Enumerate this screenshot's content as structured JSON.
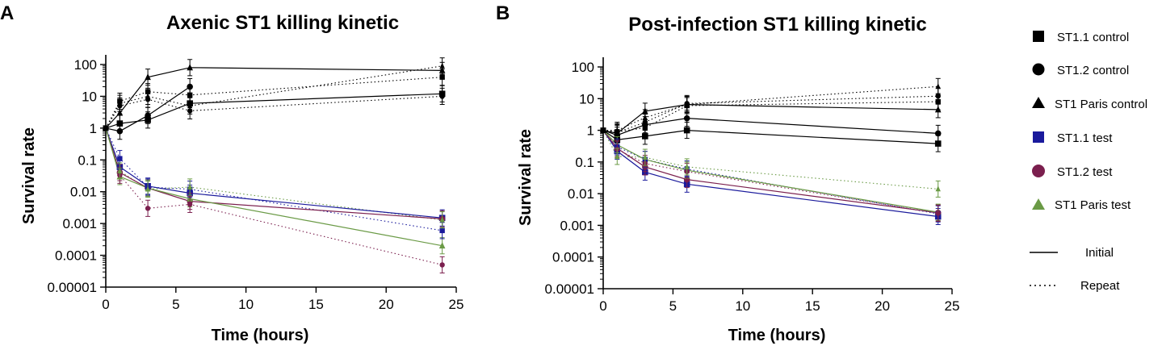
{
  "figure": {
    "panels": [
      "A",
      "B"
    ]
  },
  "legend": {
    "items": [
      {
        "label": "ST1.1 control",
        "marker": "square",
        "color": "#000000"
      },
      {
        "label": "ST1.2 control",
        "marker": "circle",
        "color": "#000000"
      },
      {
        "label": "ST1 Paris control",
        "marker": "triangle",
        "color": "#000000"
      },
      {
        "label": "ST1.1 test",
        "marker": "square",
        "color": "#1a1a9c"
      },
      {
        "label": "ST1.2 test",
        "marker": "circle",
        "color": "#7b1f4e"
      },
      {
        "label": "ST1 Paris test",
        "marker": "triangle",
        "color": "#6a9a45"
      }
    ],
    "line_styles": [
      {
        "label": "Initial",
        "style": "solid"
      },
      {
        "label": "Repeat",
        "style": "dotted"
      }
    ]
  },
  "chart_data": [
    {
      "panel": "A",
      "type": "line",
      "title": "Axenic ST1 killing kinetic",
      "xlabel": "Time (hours)",
      "ylabel": "Survival rate",
      "xlim": [
        0,
        25
      ],
      "xticks": [
        0,
        5,
        10,
        15,
        20,
        25
      ],
      "yscale": "log",
      "ylim": [
        1e-05,
        200
      ],
      "yticks": [
        1e-05,
        0.0001,
        0.001,
        0.01,
        0.1,
        1,
        10,
        100
      ],
      "ytick_labels": [
        "0.00001",
        "0.0001",
        "0.001",
        "0.01",
        "0.1",
        "1",
        "10",
        "100"
      ],
      "series": [
        {
          "name": "ST1.1 control",
          "run": "Initial",
          "x": [
            0,
            1,
            3,
            6,
            24
          ],
          "y": [
            1,
            1.4,
            1.8,
            6,
            12
          ]
        },
        {
          "name": "ST1.2 control",
          "run": "Initial",
          "x": [
            0,
            1,
            3,
            6,
            24
          ],
          "y": [
            1,
            0.8,
            2.5,
            20,
            null
          ]
        },
        {
          "name": "ST1 Paris control",
          "run": "Initial",
          "x": [
            0,
            1,
            3,
            6,
            24
          ],
          "y": [
            1,
            3,
            40,
            80,
            65
          ]
        },
        {
          "name": "ST1.1 control",
          "run": "Repeat",
          "x": [
            0,
            1,
            3,
            6,
            24
          ],
          "y": [
            1,
            7,
            14,
            11,
            40
          ]
        },
        {
          "name": "ST1.2 control",
          "run": "Repeat",
          "x": [
            0,
            1,
            3,
            6,
            24
          ],
          "y": [
            1,
            5,
            8,
            3.5,
            10
          ]
        },
        {
          "name": "ST1 Paris control",
          "run": "Repeat",
          "x": [
            0,
            1,
            3,
            6,
            24
          ],
          "y": [
            1,
            6,
            10,
            5,
            90
          ]
        },
        {
          "name": "ST1.1 test",
          "run": "Initial",
          "x": [
            0,
            1,
            3,
            6,
            24
          ],
          "y": [
            1,
            0.06,
            0.015,
            0.009,
            0.0015
          ]
        },
        {
          "name": "ST1.2 test",
          "run": "Initial",
          "x": [
            0,
            1,
            3,
            6,
            24
          ],
          "y": [
            1,
            0.04,
            0.013,
            0.005,
            0.0014
          ]
        },
        {
          "name": "ST1 Paris test",
          "run": "Initial",
          "x": [
            0,
            1,
            3,
            6,
            24
          ],
          "y": [
            1,
            0.03,
            0.013,
            0.006,
            0.0002
          ]
        },
        {
          "name": "ST1.1 test",
          "run": "Repeat",
          "x": [
            0,
            1,
            3,
            6,
            24
          ],
          "y": [
            1,
            0.11,
            0.014,
            0.012,
            0.0006
          ]
        },
        {
          "name": "ST1.2 test",
          "run": "Repeat",
          "x": [
            0,
            1,
            3,
            6,
            24
          ],
          "y": [
            1,
            0.033,
            0.003,
            0.004,
            5e-05
          ]
        },
        {
          "name": "ST1 Paris test",
          "run": "Repeat",
          "x": [
            0,
            1,
            3,
            6,
            24
          ],
          "y": [
            1,
            0.045,
            0.012,
            0.014,
            0.0013
          ]
        }
      ]
    },
    {
      "panel": "B",
      "type": "line",
      "title": "Post-infection ST1 killing kinetic",
      "xlabel": "Time (hours)",
      "ylabel": "Survival rate",
      "xlim": [
        0,
        25
      ],
      "xticks": [
        0,
        5,
        10,
        15,
        20,
        25
      ],
      "yscale": "log",
      "ylim": [
        1e-05,
        200
      ],
      "yticks": [
        1e-05,
        0.0001,
        0.001,
        0.01,
        0.1,
        1,
        10,
        100
      ],
      "ytick_labels": [
        "0.00001",
        "0.0001",
        "0.001",
        "0.01",
        "0.1",
        "1",
        "10",
        "100"
      ],
      "series": [
        {
          "name": "ST1.1 control",
          "run": "Initial",
          "x": [
            0,
            1,
            3,
            6,
            24
          ],
          "y": [
            1,
            0.5,
            0.65,
            1.0,
            0.38
          ]
        },
        {
          "name": "ST1.2 control",
          "run": "Initial",
          "x": [
            0,
            1,
            3,
            6,
            24
          ],
          "y": [
            1,
            0.7,
            1.5,
            2.4,
            0.8
          ]
        },
        {
          "name": "ST1 Paris control",
          "run": "Initial",
          "x": [
            0,
            1,
            3,
            6,
            24
          ],
          "y": [
            1,
            0.8,
            4.0,
            6.5,
            4.5
          ]
        },
        {
          "name": "ST1.1 control",
          "run": "Repeat",
          "x": [
            0,
            1,
            3,
            6,
            24
          ],
          "y": [
            1,
            0.9,
            1.2,
            6.0,
            8.0
          ]
        },
        {
          "name": "ST1.2 control",
          "run": "Repeat",
          "x": [
            0,
            1,
            3,
            6,
            24
          ],
          "y": [
            1,
            0.85,
            1.8,
            7.0,
            12
          ]
        },
        {
          "name": "ST1 Paris control",
          "run": "Repeat",
          "x": [
            0,
            1,
            3,
            6,
            24
          ],
          "y": [
            1,
            1.0,
            2.5,
            6.5,
            24
          ]
        },
        {
          "name": "ST1.1 test",
          "run": "Initial",
          "x": [
            0,
            1,
            3,
            6,
            24
          ],
          "y": [
            1,
            0.22,
            0.048,
            0.02,
            0.0019
          ]
        },
        {
          "name": "ST1.2 test",
          "run": "Initial",
          "x": [
            0,
            1,
            3,
            6,
            24
          ],
          "y": [
            1,
            0.27,
            0.07,
            0.028,
            0.0025
          ]
        },
        {
          "name": "ST1 Paris test",
          "run": "Initial",
          "x": [
            0,
            1,
            3,
            6,
            24
          ],
          "y": [
            1,
            0.35,
            0.12,
            0.055,
            0.0026
          ]
        },
        {
          "name": "ST1.1 test",
          "run": "Repeat",
          "x": [
            0,
            1,
            3,
            6,
            24
          ],
          "y": [
            1,
            0.3,
            0.12,
            0.06,
            0.0023
          ]
        },
        {
          "name": "ST1.2 test",
          "run": "Repeat",
          "x": [
            0,
            1,
            3,
            6,
            24
          ],
          "y": [
            1,
            0.25,
            0.09,
            0.05,
            0.0024
          ]
        },
        {
          "name": "ST1 Paris test",
          "run": "Repeat",
          "x": [
            0,
            1,
            3,
            6,
            24
          ],
          "y": [
            1,
            0.15,
            0.14,
            0.07,
            0.014
          ]
        }
      ]
    }
  ]
}
